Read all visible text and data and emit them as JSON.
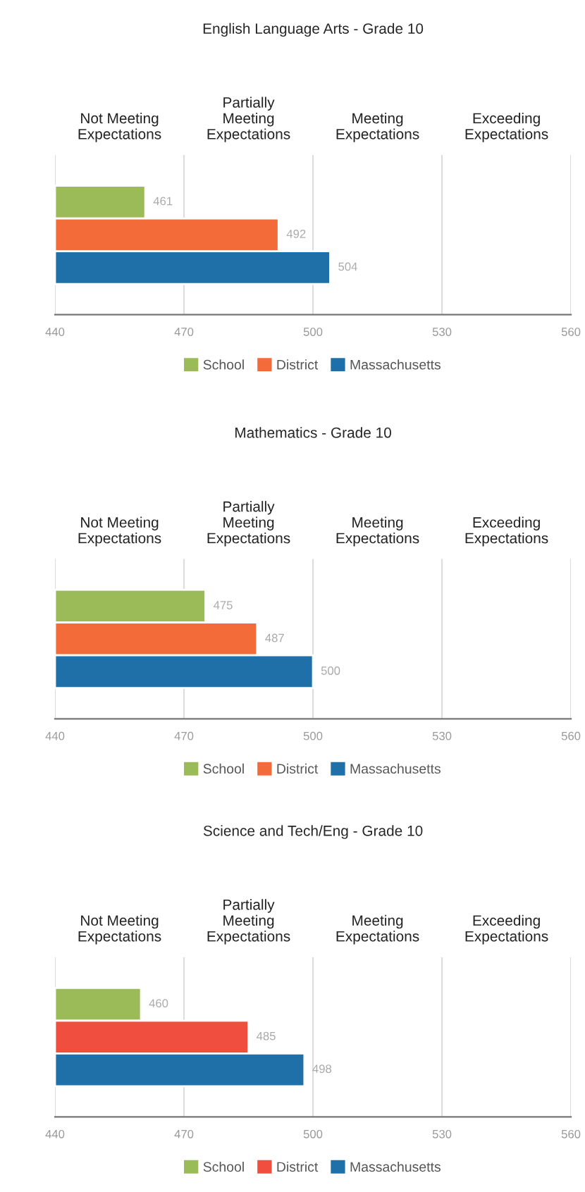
{
  "chart_data": [
    {
      "type": "bar",
      "orientation": "horizontal",
      "title": "English Language Arts - Grade 10",
      "categories": [
        null
      ],
      "series": [
        {
          "name": "School",
          "color": "#9bbb59",
          "values": [
            461
          ]
        },
        {
          "name": "District",
          "color": "#f26b38",
          "values": [
            492
          ]
        },
        {
          "name": "Massachusetts",
          "color": "#1f6fa8",
          "values": [
            504
          ]
        }
      ],
      "xlim": [
        440,
        560
      ],
      "xticks": [
        440,
        470,
        500,
        530,
        560
      ],
      "annotations": [
        "Not Meeting\nExpectations",
        "Partially\nMeeting\nExpectations",
        "Meeting\nExpectations",
        "Exceeding\nExpectations"
      ],
      "grid": "x",
      "legend": "bottom",
      "data_labels": true
    },
    {
      "type": "bar",
      "orientation": "horizontal",
      "title": "Mathematics - Grade 10",
      "categories": [
        null
      ],
      "series": [
        {
          "name": "School",
          "color": "#9bbb59",
          "values": [
            475
          ]
        },
        {
          "name": "District",
          "color": "#f26b38",
          "values": [
            487
          ]
        },
        {
          "name": "Massachusetts",
          "color": "#1f6fa8",
          "values": [
            500
          ]
        }
      ],
      "xlim": [
        440,
        560
      ],
      "xticks": [
        440,
        470,
        500,
        530,
        560
      ],
      "annotations": [
        "Not Meeting\nExpectations",
        "Partially\nMeeting\nExpectations",
        "Meeting\nExpectations",
        "Exceeding\nExpectations"
      ],
      "grid": "x",
      "legend": "bottom",
      "data_labels": true
    },
    {
      "type": "bar",
      "orientation": "horizontal",
      "title": "Science and Tech/Eng - Grade 10",
      "categories": [
        null
      ],
      "series": [
        {
          "name": "School",
          "color": "#9bbb59",
          "values": [
            460
          ]
        },
        {
          "name": "District",
          "color": "#f04e3e",
          "values": [
            485
          ]
        },
        {
          "name": "Massachusetts",
          "color": "#1f6fa8",
          "values": [
            498
          ]
        }
      ],
      "xlim": [
        440,
        560
      ],
      "xticks": [
        440,
        470,
        500,
        530,
        560
      ],
      "annotations": [
        "Not Meeting\nExpectations",
        "Partially\nMeeting\nExpectations",
        "Meeting\nExpectations",
        "Exceeding\nExpectations"
      ],
      "grid": "x",
      "legend": "bottom",
      "data_labels": true
    }
  ]
}
